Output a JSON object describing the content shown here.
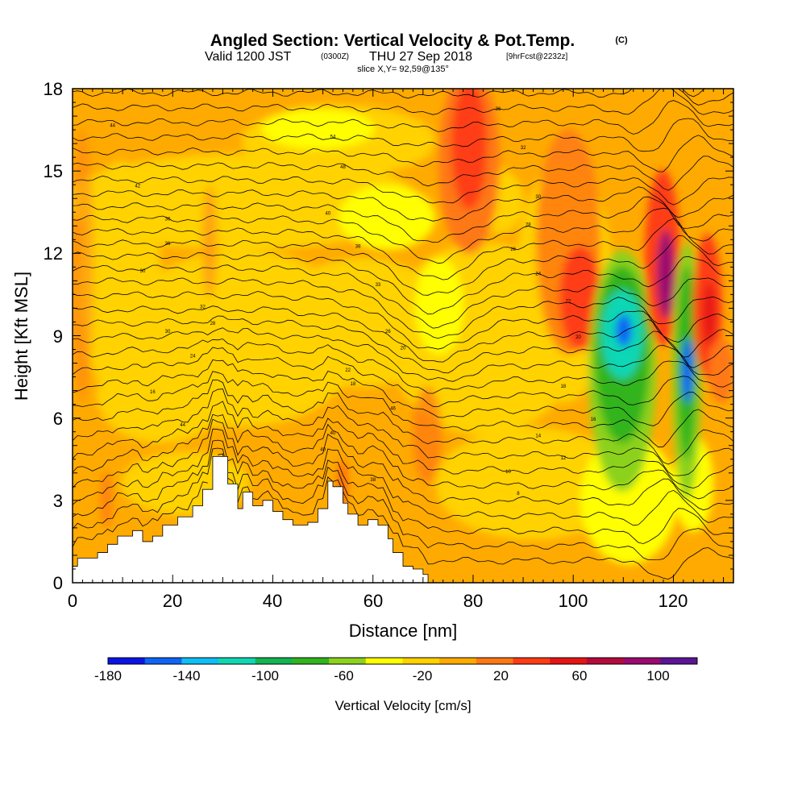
{
  "chart_data": {
    "type": "heatmap",
    "title": "Angled Section: Vertical Velocity & Pot.Temp.",
    "title_mark": "(C)",
    "subtitle_parts": [
      "Valid 1200 JST",
      "(0300Z)",
      "THU 27 Sep 2018",
      "[9hrFcst@2232z]"
    ],
    "slice": "slice X,Y= 92,59@135°",
    "xlabel": "Distance [nm]",
    "ylabel": "Height [Kft MSL]",
    "xlim": [
      0,
      132
    ],
    "ylim": [
      0,
      18
    ],
    "x_ticks": [
      0,
      20,
      40,
      60,
      80,
      100,
      120
    ],
    "y_ticks": [
      0,
      3,
      6,
      9,
      12,
      15,
      18
    ],
    "colorbar": {
      "label": "Vertical Velocity [cm/s]",
      "range": [
        -180,
        120
      ],
      "ticks": [
        -180,
        -140,
        -100,
        -60,
        -20,
        20,
        60,
        100
      ],
      "colors": [
        "#0a14e6",
        "#0f64f5",
        "#0fbef5",
        "#0fd7b4",
        "#14b450",
        "#32b41e",
        "#8cd21e",
        "#ffff00",
        "#ffd200",
        "#ffaa00",
        "#ff7814",
        "#ff3c14",
        "#e61414",
        "#b40a3c",
        "#9b0a6e",
        "#5a1496"
      ]
    },
    "features": [
      {
        "type": "updraft",
        "x": 78,
        "y": 14.5,
        "peak": 50
      },
      {
        "type": "updraft",
        "x": 101,
        "y": 10,
        "peak": 60
      },
      {
        "type": "downdraft",
        "x": 110,
        "y": 9.3,
        "peak": -150
      },
      {
        "type": "updraft",
        "x": 119,
        "y": 11.5,
        "peak": 100
      },
      {
        "type": "downdraft",
        "x": 123,
        "y": 7.5,
        "peak": -130
      },
      {
        "type": "updraft",
        "x": 126,
        "y": 10,
        "peak": 60
      }
    ],
    "terrain": [
      [
        0,
        0.6
      ],
      [
        1,
        0.9
      ],
      [
        5,
        1.1
      ],
      [
        7,
        1.4
      ],
      [
        9,
        1.7
      ],
      [
        12,
        1.9
      ],
      [
        14,
        1.5
      ],
      [
        16,
        1.7
      ],
      [
        18,
        2.1
      ],
      [
        21,
        2.4
      ],
      [
        24,
        2.8
      ],
      [
        26,
        3.4
      ],
      [
        28,
        4.6
      ],
      [
        30,
        4.6
      ],
      [
        31,
        3.6
      ],
      [
        33,
        2.7
      ],
      [
        34,
        3.3
      ],
      [
        36,
        2.8
      ],
      [
        38,
        3.0
      ],
      [
        40,
        2.6
      ],
      [
        42,
        2.3
      ],
      [
        44,
        2.1
      ],
      [
        47,
        2.2
      ],
      [
        49,
        2.7
      ],
      [
        51,
        3.7
      ],
      [
        52,
        3.5
      ],
      [
        54,
        2.9
      ],
      [
        55,
        2.5
      ],
      [
        57,
        2.1
      ],
      [
        59,
        2.3
      ],
      [
        61,
        2.1
      ],
      [
        63,
        1.6
      ],
      [
        64,
        1.1
      ],
      [
        66,
        0.6
      ],
      [
        68,
        0.5
      ],
      [
        70,
        0.3
      ],
      [
        71,
        0
      ]
    ],
    "contour_labels": [
      "44",
      "54",
      "48",
      "42",
      "40",
      "36",
      "38",
      "36",
      "30",
      "33",
      "32",
      "28",
      "30",
      "26",
      "24",
      "20",
      "22",
      "18",
      "16",
      "46",
      "44",
      "40",
      "40",
      "38",
      "36",
      "32",
      "30",
      "28",
      "26",
      "24",
      "22",
      "20",
      "18",
      "16",
      "14",
      "12",
      "10",
      "8"
    ]
  }
}
